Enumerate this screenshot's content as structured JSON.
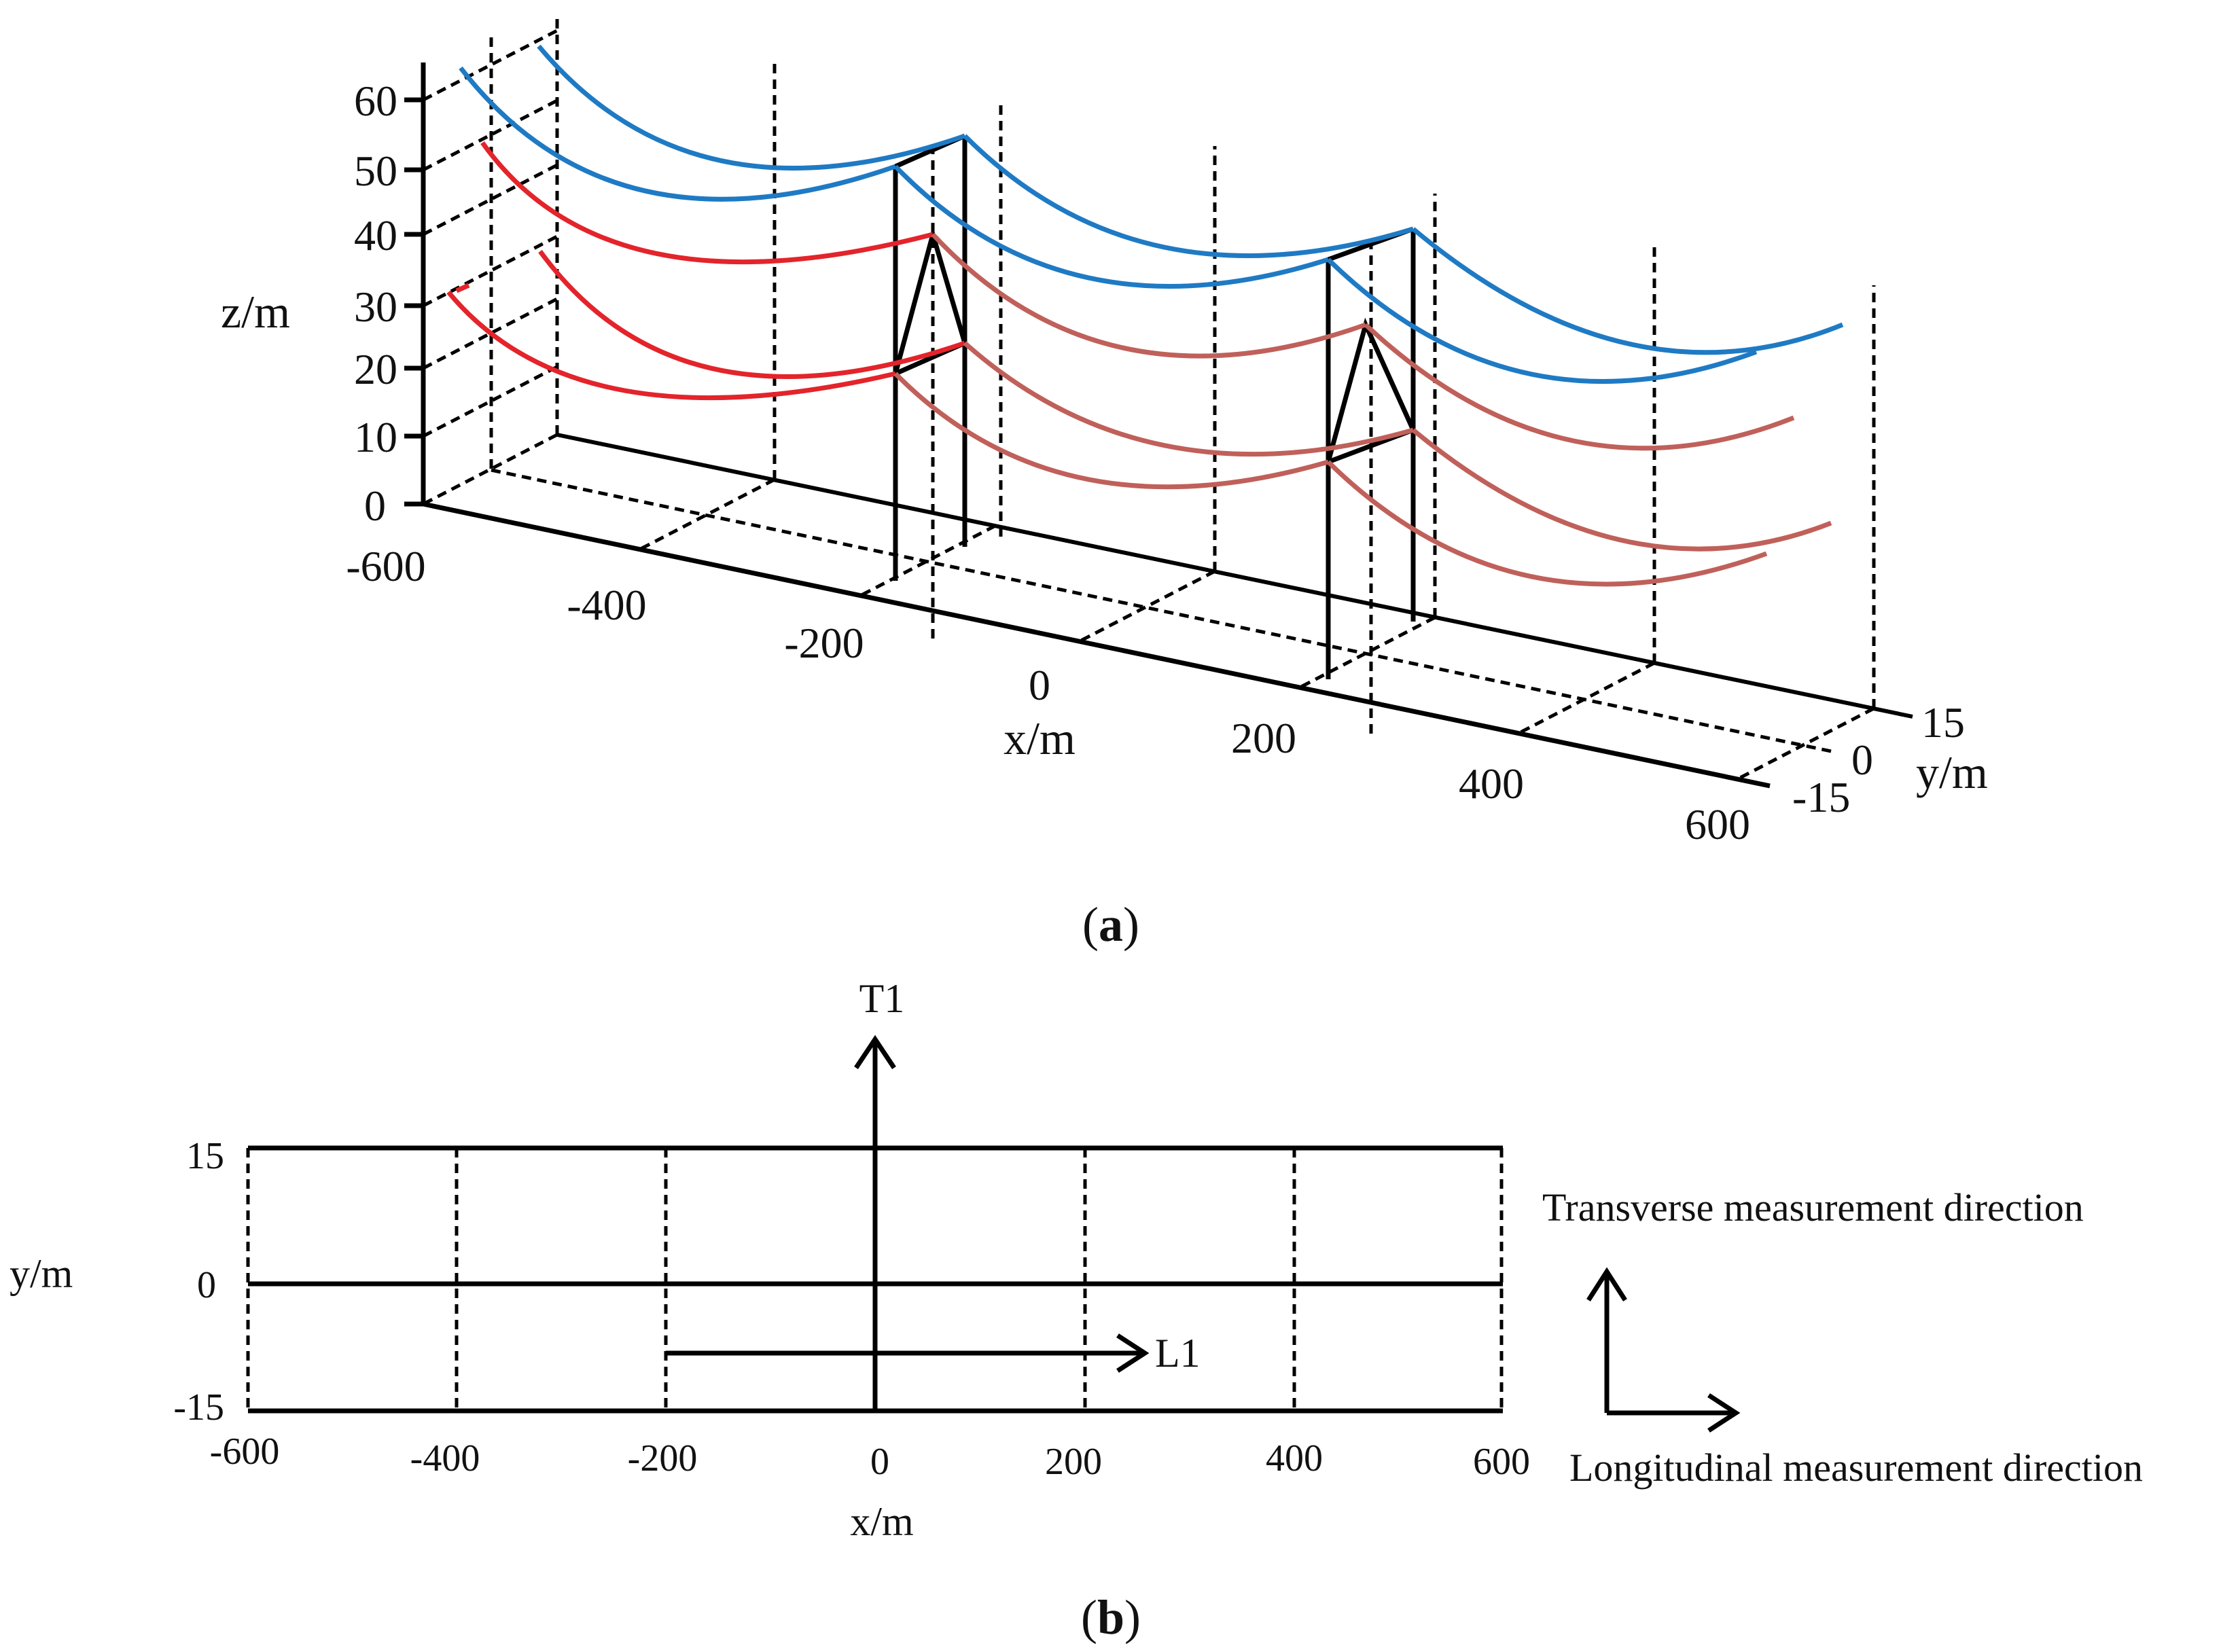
{
  "figure_a": {
    "caption": "(a)",
    "z_axis": {
      "label": "z/m",
      "ticks": [
        "0",
        "10",
        "20",
        "30",
        "40",
        "50",
        "60"
      ]
    },
    "x_axis": {
      "label": "x/m",
      "ticks": [
        "-600",
        "-400",
        "-200",
        "0",
        "200",
        "400",
        "600"
      ]
    },
    "y_axis": {
      "label": "y/m",
      "ticks": [
        "15",
        "0",
        "-15"
      ]
    },
    "colors": {
      "upper_conductors": "#1f7ac4",
      "lower_conductors_first_span": "#e3242b",
      "lower_conductors": "#c0605a",
      "towers": "#000000"
    }
  },
  "figure_b": {
    "caption": "(b)",
    "y_axis": {
      "label": "y/m",
      "ticks": [
        "15",
        "0",
        "-15"
      ]
    },
    "x_axis": {
      "label": "x/m",
      "ticks": [
        "-600",
        "-400",
        "-200",
        "0",
        "200",
        "400",
        "600"
      ]
    },
    "t1_label": "T1",
    "l1_label": "L1",
    "transverse_label": "Transverse measurement direction",
    "longitudinal_label": "Longitudinal measurement direction"
  }
}
